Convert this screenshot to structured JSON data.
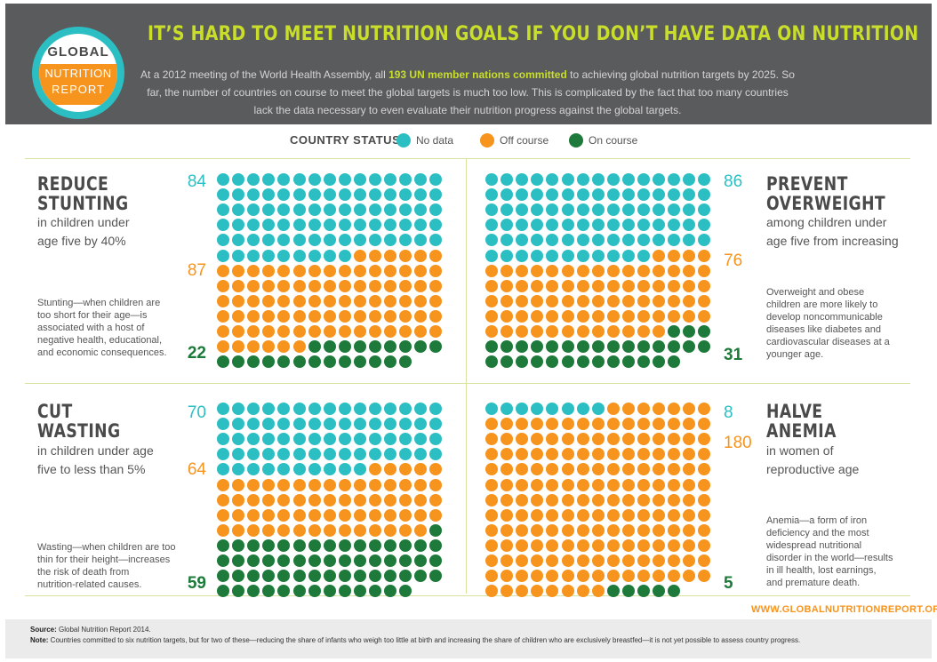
{
  "header": {
    "logo": {
      "line1": "GLOBAL",
      "line2": "NUTRITION",
      "line3": "REPORT"
    },
    "title": "IT’S HARD TO MEET NUTRITION GOALS IF YOU DON’T HAVE DATA ON NUTRITION",
    "intro_before": "At a 2012 meeting of the World Health Assembly, all ",
    "intro_highlight": "193 UN member nations committed",
    "intro_after": " to achieving global nutrition targets by 2025. So far, the number of countries on course to meet the global targets is much too low. This is complicated by the fact that too many countries lack the data necessary to even evaluate their nutrition progress against the global targets."
  },
  "legend": {
    "title": "COUNTRY STATUS:",
    "items": [
      {
        "label": "No data",
        "color": "#2bbfc3"
      },
      {
        "label": "Off course",
        "color": "#f7941d"
      },
      {
        "label": "On course",
        "color": "#1d7a3a"
      }
    ]
  },
  "panels": {
    "stunting": {
      "title_line1": "REDUCE",
      "title_line2": "STUNTING",
      "sub_line1": "in children under",
      "sub_line2": "age five by 40%",
      "desc": [
        "Stunting—when children are",
        "too short for their age—is",
        "associated with a host of",
        "negative health, educational,",
        "and economic consequences."
      ]
    },
    "overweight": {
      "title_line1": "PREVENT",
      "title_line2": "OVERWEIGHT",
      "sub_line1": "among children under",
      "sub_line2": "age five from increasing",
      "desc": [
        "Overweight and obese",
        "children are more likely to",
        "develop noncommunicable",
        "diseases like diabetes and",
        "cardiovascular diseases at a",
        "younger age."
      ]
    },
    "wasting": {
      "title_line1": "CUT",
      "title_line2": "WASTING",
      "sub_line1": "in children under age",
      "sub_line2": "five to less than 5%",
      "desc": [
        "Wasting—when children are too",
        "thin for their height—increases",
        "the risk of death from",
        "nutrition-related causes."
      ]
    },
    "anemia": {
      "title_line1": "HALVE",
      "title_line2": "ANEMIA",
      "sub_line1": "in women of",
      "sub_line2": "reproductive age",
      "desc": [
        "Anemia—a form of iron",
        "deficiency and the most",
        "widespread nutritional",
        "disorder in the world—results",
        "in ill health, lost earnings,",
        "and premature death."
      ]
    }
  },
  "footer": {
    "url": "WWW.GLOBALNUTRITIONREPORT.ORG",
    "source_label": "Source:",
    "source_text": " Global Nutrition Report 2014.",
    "note_label": "Note:",
    "note_text": " Countries committed to six nutrition targets, but for two of these—reducing the share of infants who weigh too little at birth and increasing the share of children who are exclusively breastfed—it is not yet possible to assess country progress."
  },
  "chart_data": [
    {
      "type": "waffle",
      "title": "REDUCE STUNTING",
      "categories": [
        "No data",
        "Off course",
        "On course"
      ],
      "values": [
        84,
        87,
        22
      ],
      "colors": [
        "#2bbfc3",
        "#f7941d",
        "#1d7a3a"
      ],
      "total": 193
    },
    {
      "type": "waffle",
      "title": "PREVENT OVERWEIGHT",
      "categories": [
        "No data",
        "Off course",
        "On course"
      ],
      "values": [
        86,
        76,
        31
      ],
      "colors": [
        "#2bbfc3",
        "#f7941d",
        "#1d7a3a"
      ],
      "total": 193
    },
    {
      "type": "waffle",
      "title": "CUT WASTING",
      "categories": [
        "No data",
        "Off course",
        "On course"
      ],
      "values": [
        70,
        64,
        59
      ],
      "colors": [
        "#2bbfc3",
        "#f7941d",
        "#1d7a3a"
      ],
      "total": 193
    },
    {
      "type": "waffle",
      "title": "HALVE ANEMIA",
      "categories": [
        "No data",
        "Off course",
        "On course"
      ],
      "values": [
        8,
        180,
        5
      ],
      "colors": [
        "#2bbfc3",
        "#f7941d",
        "#1d7a3a"
      ],
      "total": 193
    }
  ]
}
